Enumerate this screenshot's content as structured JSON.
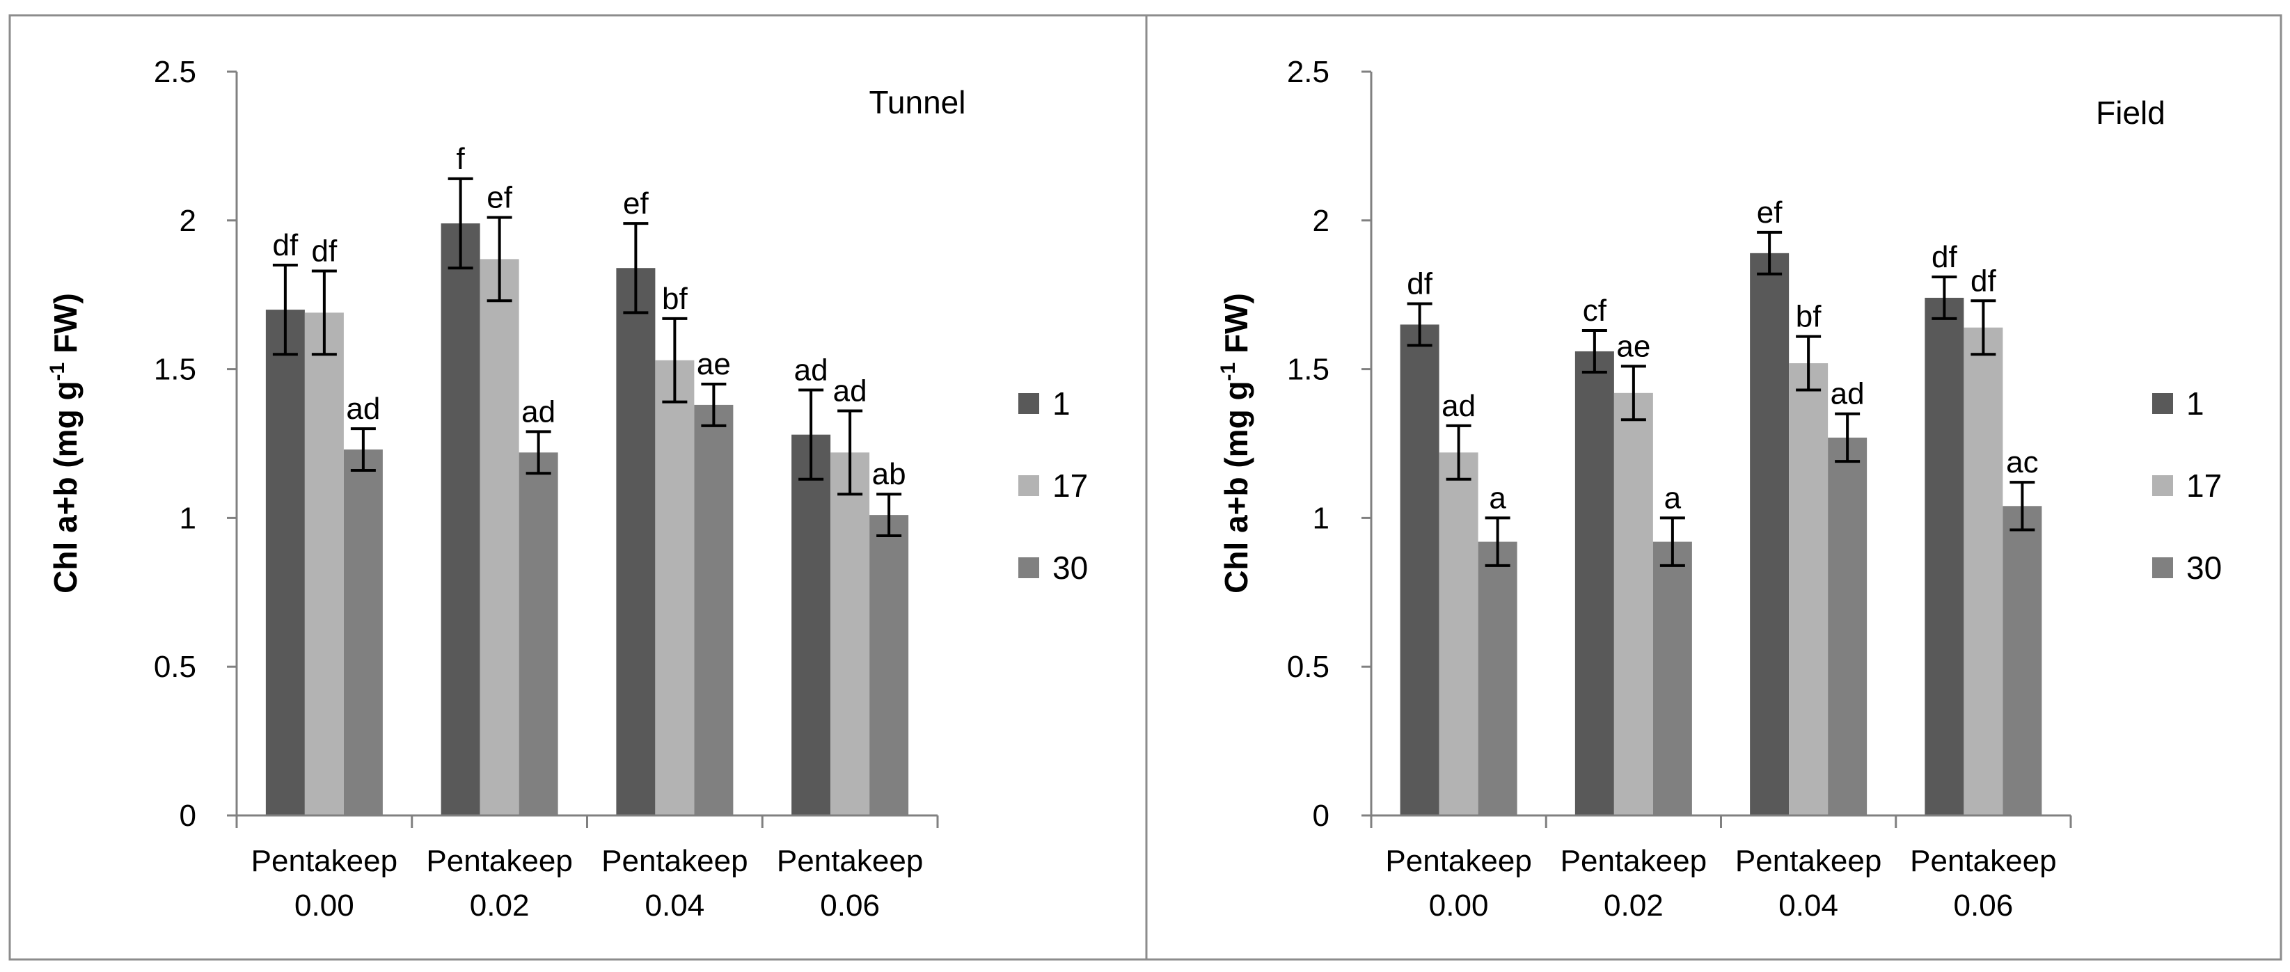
{
  "colors": {
    "series_1": "#595959",
    "series_17": "#b3b3b3",
    "series_30": "#808080",
    "axis": "#808080",
    "text": "#000000",
    "panel_border": "#8c8c8c"
  },
  "chart_data": [
    {
      "type": "bar",
      "title": "Tunnel",
      "ylabel_main": "Chl a+b (mg g",
      "ylabel_sup": "-1",
      "ylabel_tail": " FW)",
      "ylim": [
        0,
        2.5
      ],
      "yticks": [
        "0",
        "0.5",
        "1",
        "1.5",
        "2",
        "2.5"
      ],
      "categories": [
        {
          "line1": "Pentakeep",
          "line2": "0.00"
        },
        {
          "line1": "Pentakeep",
          "line2": "0.02"
        },
        {
          "line1": "Pentakeep",
          "line2": "0.04"
        },
        {
          "line1": "Pentakeep",
          "line2": "0.06"
        }
      ],
      "series": [
        {
          "name": "1",
          "values": [
            1.7,
            1.99,
            1.84,
            1.28
          ],
          "errors": [
            0.15,
            0.15,
            0.15,
            0.15
          ],
          "letters": [
            "df",
            "f",
            "ef",
            "ad"
          ]
        },
        {
          "name": "17",
          "values": [
            1.69,
            1.87,
            1.53,
            1.22
          ],
          "errors": [
            0.14,
            0.14,
            0.14,
            0.14
          ],
          "letters": [
            "df",
            "ef",
            "bf",
            "ad"
          ]
        },
        {
          "name": "30",
          "values": [
            1.23,
            1.22,
            1.38,
            1.01
          ],
          "errors": [
            0.07,
            0.07,
            0.07,
            0.07
          ],
          "letters": [
            "ad",
            "ad",
            "ae",
            "ab"
          ]
        }
      ]
    },
    {
      "type": "bar",
      "title": "Field",
      "ylabel_main": "Chl a+b (mg g",
      "ylabel_sup": "-1",
      "ylabel_tail": " FW)",
      "ylim": [
        0,
        2.5
      ],
      "yticks": [
        "0",
        "0.5",
        "1",
        "1.5",
        "2",
        "2.5"
      ],
      "categories": [
        {
          "line1": "Pentakeep",
          "line2": "0.00"
        },
        {
          "line1": "Pentakeep",
          "line2": "0.02"
        },
        {
          "line1": "Pentakeep",
          "line2": "0.04"
        },
        {
          "line1": "Pentakeep",
          "line2": "0.06"
        }
      ],
      "series": [
        {
          "name": "1",
          "values": [
            1.65,
            1.56,
            1.89,
            1.74
          ],
          "errors": [
            0.07,
            0.07,
            0.07,
            0.07
          ],
          "letters": [
            "df",
            "cf",
            "ef",
            "df"
          ]
        },
        {
          "name": "17",
          "values": [
            1.22,
            1.42,
            1.52,
            1.64
          ],
          "errors": [
            0.09,
            0.09,
            0.09,
            0.09
          ],
          "letters": [
            "ad",
            "ae",
            "bf",
            "df"
          ]
        },
        {
          "name": "30",
          "values": [
            0.92,
            0.92,
            1.27,
            1.04
          ],
          "errors": [
            0.08,
            0.08,
            0.08,
            0.08
          ],
          "letters": [
            "a",
            "a",
            "ad",
            "ac"
          ]
        }
      ]
    }
  ]
}
